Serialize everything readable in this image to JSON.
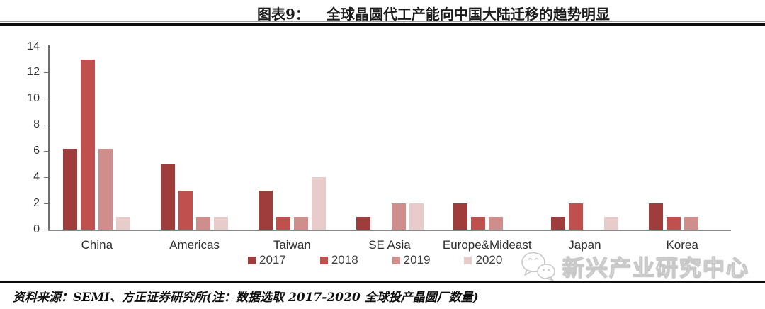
{
  "header": {
    "label": "图表9：",
    "title": "全球晶圆代工产能向中国大陆迁移的趋势明显"
  },
  "chart_data": {
    "type": "bar",
    "title": "全球晶圆代工产能向中国大陆迁移的趋势明显",
    "categories": [
      "China",
      "Americas",
      "Taiwan",
      "SE Asia",
      "Europe&Mideast",
      "Japan",
      "Korea"
    ],
    "series": [
      {
        "name": "2017",
        "color": "#9e3d3b",
        "values": [
          6.2,
          5,
          3,
          1,
          2,
          1,
          2
        ]
      },
      {
        "name": "2018",
        "color": "#c0504d",
        "values": [
          13,
          3,
          1,
          0,
          1,
          2,
          1
        ]
      },
      {
        "name": "2019",
        "color": "#cf8d8c",
        "values": [
          6.2,
          1,
          1,
          2,
          1,
          0,
          1
        ]
      },
      {
        "name": "2020",
        "color": "#e8cccb",
        "values": [
          1,
          1,
          4,
          2,
          0,
          1,
          0
        ]
      }
    ],
    "xlabel": "",
    "ylabel": "",
    "ylim": [
      0,
      14
    ],
    "ytick_step": 2,
    "grid": false,
    "legend_position": "bottom"
  },
  "footer": {
    "source": "资料来源：SEMI、方正证券研究所(注：数据选取 2017-2020 全球投产晶圆厂数量)"
  },
  "watermark": {
    "icon": "wechat-icon",
    "text": "新兴产业研究中心"
  }
}
